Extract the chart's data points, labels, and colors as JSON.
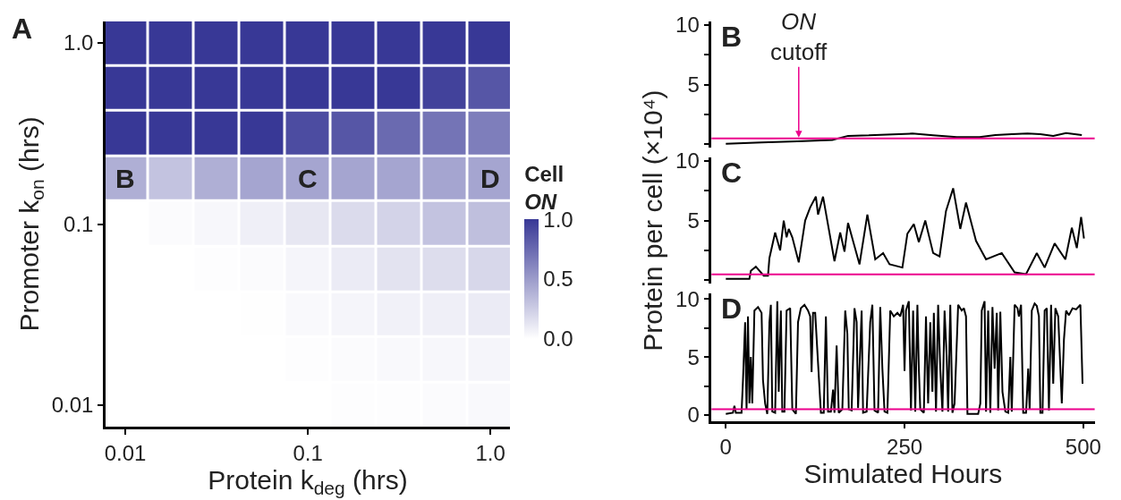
{
  "chart_data": [
    {
      "type": "heatmap",
      "xlabel": "Protein k$_{deg}$ (hrs)",
      "ylabel": "Promoter k$_{on}$ (hrs)",
      "clabel": "Cell ON",
      "color": "#383896",
      "log": "xy",
      "x": [
        0.01,
        0.0178,
        0.0316,
        0.0562,
        0.1,
        0.178,
        0.316,
        0.562,
        1.0
      ],
      "y": [
        1.0,
        0.562,
        0.316,
        0.178,
        0.1,
        0.0562,
        0.0316,
        0.0178,
        0.01
      ],
      "cells": [
        [
          1,
          1,
          1,
          1,
          1,
          1,
          1,
          1,
          1
        ],
        [
          1,
          1,
          1,
          1,
          1,
          1,
          1,
          0.95,
          0.85
        ],
        [
          1,
          1,
          1,
          1,
          0.9,
          0.85,
          0.75,
          0.7,
          0.65
        ],
        [
          0.4,
          0.3,
          0.4,
          0.45,
          0.45,
          0.45,
          0.45,
          0.45,
          0.45
        ],
        [
          0,
          0.02,
          0.04,
          0.08,
          0.12,
          0.18,
          0.22,
          0.3,
          0.32
        ],
        [
          0,
          0,
          0.01,
          0.02,
          0.05,
          0.1,
          0.14,
          0.17,
          0.2
        ],
        [
          0,
          0,
          0,
          0.005,
          0.03,
          0.05,
          0.07,
          0.08,
          0.1
        ],
        [
          0,
          0,
          0,
          0,
          0.01,
          0.02,
          0.03,
          0.04,
          0.05
        ],
        [
          0,
          0,
          0,
          0,
          0,
          0.01,
          0.01,
          0.02,
          0.03
        ]
      ],
      "clim": [
        0,
        1
      ],
      "cticks": [
        {
          "value": 0,
          "label": "0.0"
        },
        0.5,
        {
          "value": 1,
          "label": "1.0"
        }
      ],
      "xlim": [
        0.0078,
        1.28
      ],
      "ylim": [
        0.0076,
        1.32
      ],
      "xticks": [
        0.01,
        0.1,
        {
          "value": 1,
          "label": "1.0"
        }
      ],
      "yticks": [
        0.01,
        0.1,
        {
          "value": 1,
          "label": "1.0"
        }
      ],
      "cell_labels": [
        [
          null,
          null,
          null,
          null,
          null,
          null,
          null,
          null,
          null
        ],
        [
          null,
          null,
          null,
          null,
          null,
          null,
          null,
          null,
          null
        ],
        [
          null,
          null,
          null,
          null,
          null,
          null,
          null,
          null,
          null
        ],
        [
          "B",
          null,
          null,
          null,
          "C",
          null,
          null,
          null,
          "D"
        ],
        [
          null,
          null,
          null,
          null,
          null,
          null,
          null,
          null,
          null
        ],
        [
          null,
          null,
          null,
          null,
          null,
          null,
          null,
          null,
          null
        ],
        [
          null,
          null,
          null,
          null,
          null,
          null,
          null,
          null,
          null
        ],
        [
          null,
          null,
          null,
          null,
          null,
          null,
          null,
          null,
          null
        ],
        [
          null,
          null,
          null,
          null,
          null,
          null,
          null,
          null,
          null
        ]
      ],
      "annotations": [
        "A"
      ]
    },
    {
      "type": "line",
      "xlim": [
        -20,
        516
      ],
      "ylim": [
        -0.3,
        10.3
      ],
      "xticks": [
        0,
        250,
        500
      ],
      "yticks": [
        {
          "value": 0,
          "label": null
        },
        {
          "value": 2.5,
          "label": null
        },
        5,
        {
          "value": 7.5,
          "label": null
        },
        10
      ],
      "tick_labels": "y",
      "ref_lines": [
        {
          "axis": "y",
          "value": 0.5,
          "color": "#ec008c"
        }
      ],
      "annotations": [
        "B",
        {
          "text": "ON cutoff",
          "x": 102,
          "y": 0.5
        }
      ],
      "series": [
        {
          "color": "#000000",
          "x": [
            0,
            50,
            100,
            149,
            171,
            200,
            225,
            261,
            290,
            323,
            355,
            377,
            400,
            422,
            440,
            458,
            476,
            498
          ],
          "values": [
            0.05,
            0.15,
            0.26,
            0.37,
            0.71,
            0.75,
            0.82,
            0.9,
            0.75,
            0.6,
            0.6,
            0.78,
            0.85,
            0.9,
            0.85,
            0.71,
            0.95,
            0.77
          ]
        }
      ]
    },
    {
      "type": "line",
      "xlim": [
        -20,
        516
      ],
      "ylim": [
        -0.3,
        10.3
      ],
      "xticks": [
        0,
        250,
        500
      ],
      "yticks": [
        {
          "value": 0,
          "label": null
        },
        {
          "value": 2.5,
          "label": null
        },
        5,
        {
          "value": 7.5,
          "label": null
        },
        10
      ],
      "tick_labels": "y",
      "ylabel": "Protein per cell (×10⁴)",
      "ref_lines": [
        {
          "axis": "y",
          "value": 0.5,
          "color": "#ec008c"
        }
      ],
      "annotations": [
        "C"
      ],
      "series": [
        {
          "color": "#000000",
          "x": [
            0,
            33,
            35,
            42,
            53,
            59,
            61,
            69,
            76,
            81,
            85,
            88,
            93,
            102,
            111,
            118,
            126,
            129,
            136,
            152,
            160,
            166,
            171,
            187,
            198,
            209,
            220,
            229,
            247,
            254,
            263,
            270,
            279,
            290,
            299,
            308,
            318,
            328,
            336,
            350,
            364,
            386,
            404,
            420,
            435,
            446,
            460,
            475,
            484,
            491,
            497,
            501
          ],
          "values": [
            0.12,
            0.12,
            0.8,
            1.14,
            0.39,
            0.39,
            1.87,
            4.0,
            2.5,
            5.0,
            3.6,
            4.3,
            3.6,
            1.5,
            5.0,
            6.1,
            7.0,
            5.5,
            7.0,
            1.6,
            4.0,
            2.4,
            4.8,
            1.34,
            5.5,
            1.75,
            2.28,
            1.34,
            1.07,
            3.9,
            4.7,
            3.2,
            5.0,
            2.28,
            2.0,
            5.8,
            7.7,
            4.3,
            6.5,
            3.3,
            1.75,
            2.28,
            0.66,
            0.52,
            2.28,
            1.07,
            3.09,
            1.75,
            4.4,
            2.7,
            5.3,
            3.5
          ]
        }
      ]
    },
    {
      "type": "line",
      "xlim": [
        -20,
        516
      ],
      "ylim": [
        -0.5,
        10.5
      ],
      "xticks": [
        0,
        250,
        500
      ],
      "yticks": [
        0,
        {
          "value": 2.5,
          "label": null
        },
        5,
        {
          "value": 7.5,
          "label": null
        },
        10
      ],
      "xlabel": "Simulated Hours",
      "ref_lines": [
        {
          "axis": "y",
          "value": 0.5,
          "color": "#ec008c"
        }
      ],
      "annotations": [
        "D"
      ],
      "series": [
        {
          "color": "#000000",
          "x": [
            0,
            10,
            12,
            14,
            22,
            24,
            27,
            29,
            31,
            33,
            35,
            37,
            40,
            45,
            50,
            52,
            55,
            58,
            61,
            63,
            65,
            69,
            72,
            74,
            77,
            79,
            82,
            85,
            90,
            93,
            98,
            101,
            105,
            110,
            115,
            118,
            120,
            122,
            125,
            133,
            137,
            140,
            143,
            147,
            150,
            152,
            155,
            158,
            163,
            167,
            170,
            172,
            176,
            180,
            183,
            185,
            190,
            192,
            197,
            202,
            205,
            208,
            213,
            216,
            219,
            222,
            226,
            230,
            235,
            240,
            244,
            248,
            250,
            252,
            256,
            259,
            262,
            265,
            268,
            270,
            272,
            277,
            280,
            283,
            286,
            289,
            291,
            294,
            297,
            300,
            303,
            306,
            309,
            311,
            314,
            317,
            320,
            325,
            330,
            333,
            336,
            338,
            343,
            353,
            356,
            358,
            362,
            364,
            367,
            370,
            373,
            376,
            379,
            381,
            384,
            387,
            391,
            395,
            398,
            400,
            404,
            408,
            410,
            413,
            416,
            420,
            423,
            425,
            428,
            432,
            435,
            438,
            440,
            443,
            446,
            449,
            452,
            455,
            458,
            461,
            465,
            470,
            473,
            476,
            480,
            485,
            490,
            496,
            499
          ],
          "values": [
            0.1,
            0.2,
            0.8,
            0.2,
            0.2,
            3,
            8,
            0.5,
            8.5,
            1,
            5,
            1,
            9,
            9.3,
            8.8,
            3,
            1,
            0.1,
            8,
            9.5,
            0.3,
            0.2,
            9.8,
            2,
            9,
            0.3,
            0.3,
            9,
            9.2,
            0.5,
            0.1,
            8,
            9.2,
            9.5,
            9,
            8.5,
            3.7,
            8.8,
            8.8,
            0.2,
            0.2,
            8.5,
            0.3,
            0.3,
            2.2,
            0.2,
            6,
            0.2,
            0.5,
            9,
            7,
            0.5,
            0.4,
            9.2,
            8,
            0.6,
            9,
            0.2,
            0.3,
            8,
            9.5,
            0.4,
            0.2,
            9.3,
            4,
            0.3,
            0.2,
            9,
            8.5,
            8.8,
            8.5,
            9.5,
            3.8,
            9,
            9.8,
            0.4,
            9,
            0.3,
            9.5,
            4,
            0.5,
            0.2,
            8.5,
            1,
            8,
            2,
            8.8,
            0.3,
            9.5,
            4,
            0.3,
            9,
            5,
            0.3,
            9.5,
            0.2,
            1,
            9.5,
            9,
            9.2,
            8.5,
            0.1,
            0.1,
            0.1,
            1,
            9,
            9.8,
            0.3,
            9,
            0.2,
            9.3,
            4,
            8.8,
            0.4,
            8.9,
            2,
            0.3,
            0.2,
            5,
            0.3,
            9.5,
            9.2,
            8.5,
            9.5,
            0.2,
            0.2,
            4,
            0.5,
            9,
            9.6,
            9.4,
            8.5,
            0.2,
            0.2,
            9,
            9.2,
            0.4,
            9.5,
            2.7,
            9.2,
            8.5,
            1,
            6.5,
            9,
            8.6,
            9.2,
            9.1,
            9.5,
            2.7
          ]
        }
      ]
    }
  ]
}
